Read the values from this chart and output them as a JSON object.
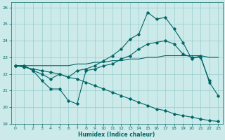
{
  "xlabel": "Humidex (Indice chaleur)",
  "bg_color": "#cceaea",
  "grid_color": "#99cccc",
  "line_color": "#006666",
  "xlim": [
    -0.5,
    23.5
  ],
  "ylim": [
    19,
    26.3
  ],
  "xticks": [
    0,
    1,
    2,
    3,
    4,
    5,
    6,
    7,
    8,
    9,
    10,
    11,
    12,
    13,
    14,
    15,
    16,
    17,
    18,
    19,
    20,
    21,
    22,
    23
  ],
  "yticks": [
    19,
    20,
    21,
    22,
    23,
    24,
    25,
    26
  ],
  "series": {
    "peaked": [
      22.5,
      22.5,
      22.2,
      22.0,
      21.7,
      22.0,
      21.8,
      22.2,
      22.3,
      22.5,
      22.8,
      23.1,
      23.5,
      24.1,
      24.4,
      25.7,
      25.3,
      25.4,
      24.7,
      23.9,
      22.9,
      23.1,
      21.5,
      20.7
    ],
    "diagonal": [
      22.5,
      22.4,
      22.3,
      22.2,
      22.1,
      22.0,
      21.8,
      21.7,
      21.5,
      21.3,
      21.1,
      20.9,
      20.7,
      20.5,
      20.3,
      20.1,
      19.9,
      19.8,
      19.6,
      19.5,
      19.4,
      19.3,
      19.2,
      19.15
    ],
    "flat_rise": [
      22.5,
      22.5,
      22.5,
      22.5,
      22.5,
      22.5,
      22.5,
      22.6,
      22.6,
      22.7,
      22.7,
      22.8,
      22.8,
      22.9,
      22.9,
      23.0,
      23.0,
      23.1,
      23.1,
      23.1,
      23.1,
      23.1,
      23.0,
      23.0
    ],
    "zigzag": [
      22.5,
      22.5,
      22.2,
      21.6,
      21.1,
      21.1,
      20.4,
      20.2,
      22.2,
      22.3,
      22.5,
      22.6,
      22.9,
      23.1,
      23.5,
      23.8,
      23.9,
      24.0,
      23.8,
      23.2,
      23.0,
      23.0,
      21.6,
      null
    ]
  }
}
